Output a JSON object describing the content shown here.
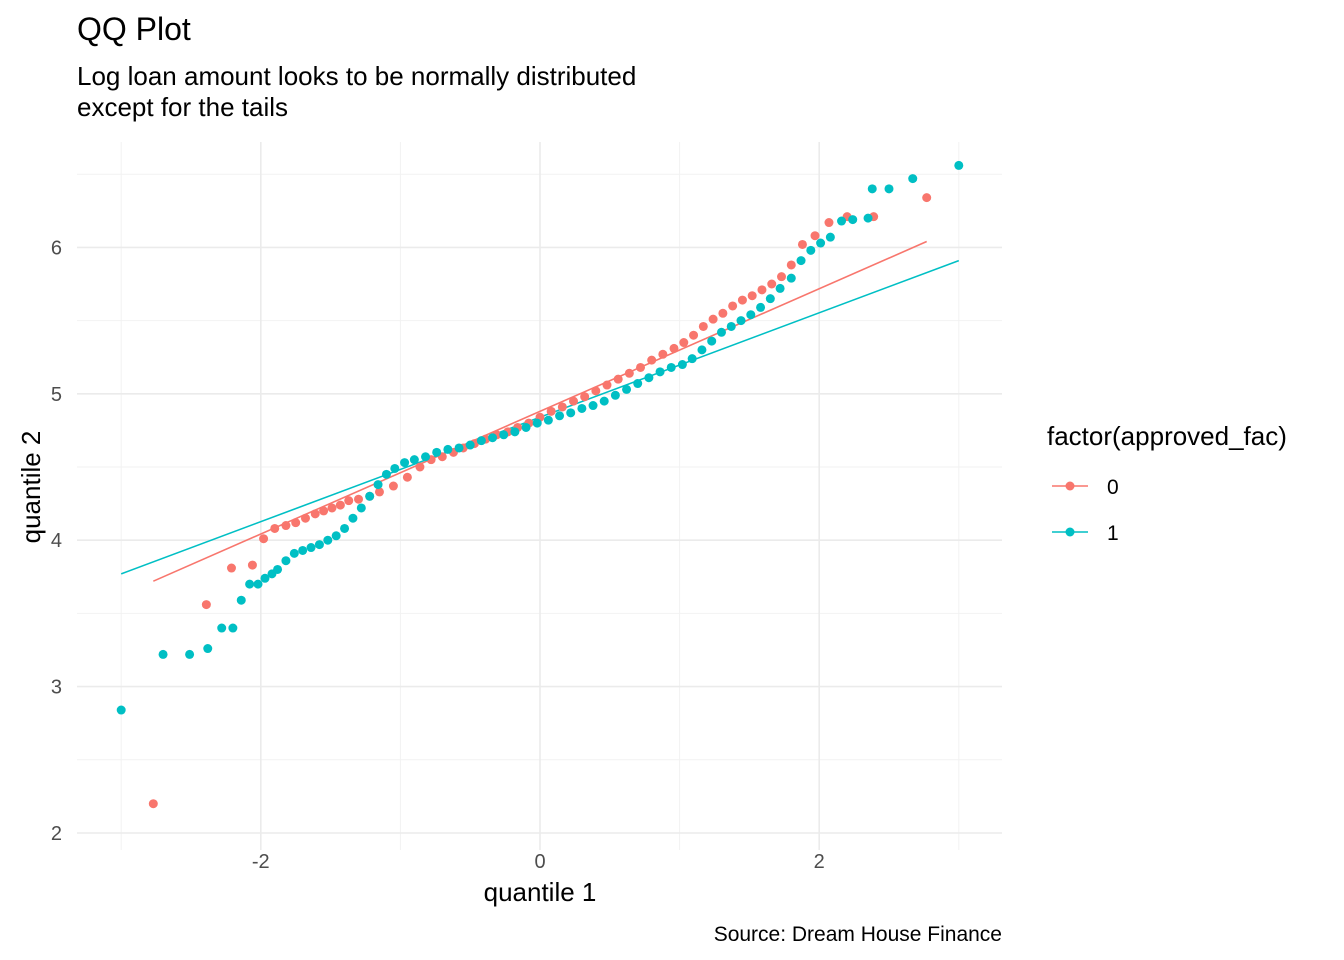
{
  "chart_data": {
    "type": "scatter",
    "title": "QQ Plot",
    "subtitle": [
      "Log loan amount looks to be normally distributed",
      "except for the tails"
    ],
    "xlabel": "quantile 1",
    "ylabel": "quantile 2",
    "caption": "Source: Dream House Finance",
    "legend_title": "factor(approved_fac)",
    "legend_position": "right",
    "xlim": [
      -3.0,
      3.3
    ],
    "ylim": [
      1.97,
      6.6
    ],
    "x_ticks": [
      -2,
      0,
      2
    ],
    "x_tick_labels": [
      "-2",
      "0",
      "2"
    ],
    "y_ticks": [
      2,
      3,
      4,
      5,
      6
    ],
    "y_tick_labels": [
      "2",
      "3",
      "4",
      "5",
      "6"
    ],
    "grid": true,
    "series": [
      {
        "name": "0",
        "color": "#F8766D",
        "line": [
          [
            -2.77,
            3.72
          ],
          [
            2.77,
            6.04
          ]
        ],
        "points": [
          [
            -2.77,
            2.2
          ],
          [
            -2.39,
            3.56
          ],
          [
            -2.21,
            3.81
          ],
          [
            -2.06,
            3.83
          ],
          [
            -1.98,
            4.01
          ],
          [
            -1.9,
            4.08
          ],
          [
            -1.82,
            4.1
          ],
          [
            -1.75,
            4.12
          ],
          [
            -1.68,
            4.15
          ],
          [
            -1.61,
            4.18
          ],
          [
            -1.55,
            4.2
          ],
          [
            -1.49,
            4.22
          ],
          [
            -1.43,
            4.24
          ],
          [
            -1.37,
            4.27
          ],
          [
            -1.3,
            4.28
          ],
          [
            -1.22,
            4.3
          ],
          [
            -1.15,
            4.33
          ],
          [
            -1.05,
            4.37
          ],
          [
            -0.95,
            4.43
          ],
          [
            -0.86,
            4.5
          ],
          [
            -0.78,
            4.55
          ],
          [
            -0.7,
            4.57
          ],
          [
            -0.62,
            4.6
          ],
          [
            -0.55,
            4.63
          ],
          [
            -0.47,
            4.66
          ],
          [
            -0.39,
            4.69
          ],
          [
            -0.31,
            4.72
          ],
          [
            -0.23,
            4.74
          ],
          [
            -0.16,
            4.77
          ],
          [
            -0.08,
            4.8
          ],
          [
            0.0,
            4.84
          ],
          [
            0.08,
            4.88
          ],
          [
            0.16,
            4.91
          ],
          [
            0.24,
            4.95
          ],
          [
            0.32,
            4.98
          ],
          [
            0.4,
            5.02
          ],
          [
            0.48,
            5.06
          ],
          [
            0.56,
            5.1
          ],
          [
            0.64,
            5.14
          ],
          [
            0.72,
            5.18
          ],
          [
            0.8,
            5.23
          ],
          [
            0.88,
            5.27
          ],
          [
            0.96,
            5.31
          ],
          [
            1.03,
            5.35
          ],
          [
            1.1,
            5.4
          ],
          [
            1.17,
            5.46
          ],
          [
            1.24,
            5.51
          ],
          [
            1.31,
            5.55
          ],
          [
            1.38,
            5.6
          ],
          [
            1.45,
            5.64
          ],
          [
            1.52,
            5.67
          ],
          [
            1.59,
            5.71
          ],
          [
            1.66,
            5.75
          ],
          [
            1.73,
            5.8
          ],
          [
            1.8,
            5.88
          ],
          [
            1.88,
            6.02
          ],
          [
            1.97,
            6.08
          ],
          [
            2.07,
            6.17
          ],
          [
            2.2,
            6.21
          ],
          [
            2.39,
            6.21
          ],
          [
            2.77,
            6.34
          ]
        ]
      },
      {
        "name": "1",
        "color": "#00BFC4",
        "line": [
          [
            -3.0,
            3.77
          ],
          [
            3.0,
            5.91
          ]
        ],
        "points": [
          [
            -3.0,
            2.84
          ],
          [
            -2.7,
            3.22
          ],
          [
            -2.51,
            3.22
          ],
          [
            -2.38,
            3.26
          ],
          [
            -2.28,
            3.4
          ],
          [
            -2.2,
            3.4
          ],
          [
            -2.14,
            3.59
          ],
          [
            -2.08,
            3.7
          ],
          [
            -2.02,
            3.7
          ],
          [
            -1.97,
            3.74
          ],
          [
            -1.92,
            3.77
          ],
          [
            -1.88,
            3.8
          ],
          [
            -1.82,
            3.86
          ],
          [
            -1.76,
            3.91
          ],
          [
            -1.7,
            3.93
          ],
          [
            -1.64,
            3.95
          ],
          [
            -1.58,
            3.97
          ],
          [
            -1.52,
            4.0
          ],
          [
            -1.46,
            4.03
          ],
          [
            -1.4,
            4.08
          ],
          [
            -1.34,
            4.15
          ],
          [
            -1.28,
            4.22
          ],
          [
            -1.22,
            4.3
          ],
          [
            -1.16,
            4.38
          ],
          [
            -1.1,
            4.45
          ],
          [
            -1.04,
            4.49
          ],
          [
            -0.97,
            4.53
          ],
          [
            -0.9,
            4.55
          ],
          [
            -0.82,
            4.57
          ],
          [
            -0.74,
            4.6
          ],
          [
            -0.66,
            4.62
          ],
          [
            -0.58,
            4.63
          ],
          [
            -0.5,
            4.65
          ],
          [
            -0.42,
            4.68
          ],
          [
            -0.34,
            4.7
          ],
          [
            -0.26,
            4.72
          ],
          [
            -0.18,
            4.74
          ],
          [
            -0.1,
            4.77
          ],
          [
            -0.02,
            4.8
          ],
          [
            0.06,
            4.82
          ],
          [
            0.14,
            4.85
          ],
          [
            0.22,
            4.87
          ],
          [
            0.3,
            4.9
          ],
          [
            0.38,
            4.92
          ],
          [
            0.46,
            4.95
          ],
          [
            0.54,
            4.99
          ],
          [
            0.62,
            5.03
          ],
          [
            0.7,
            5.07
          ],
          [
            0.78,
            5.11
          ],
          [
            0.86,
            5.15
          ],
          [
            0.94,
            5.18
          ],
          [
            1.02,
            5.2
          ],
          [
            1.09,
            5.24
          ],
          [
            1.16,
            5.3
          ],
          [
            1.23,
            5.36
          ],
          [
            1.3,
            5.42
          ],
          [
            1.37,
            5.46
          ],
          [
            1.44,
            5.5
          ],
          [
            1.51,
            5.54
          ],
          [
            1.58,
            5.59
          ],
          [
            1.65,
            5.65
          ],
          [
            1.72,
            5.72
          ],
          [
            1.8,
            5.79
          ],
          [
            1.87,
            5.91
          ],
          [
            1.94,
            5.98
          ],
          [
            2.01,
            6.03
          ],
          [
            2.08,
            6.07
          ],
          [
            2.16,
            6.18
          ],
          [
            2.24,
            6.19
          ],
          [
            2.35,
            6.2
          ],
          [
            2.38,
            6.4
          ],
          [
            2.5,
            6.4
          ],
          [
            2.67,
            6.47
          ],
          [
            3.0,
            6.56
          ]
        ]
      }
    ]
  }
}
